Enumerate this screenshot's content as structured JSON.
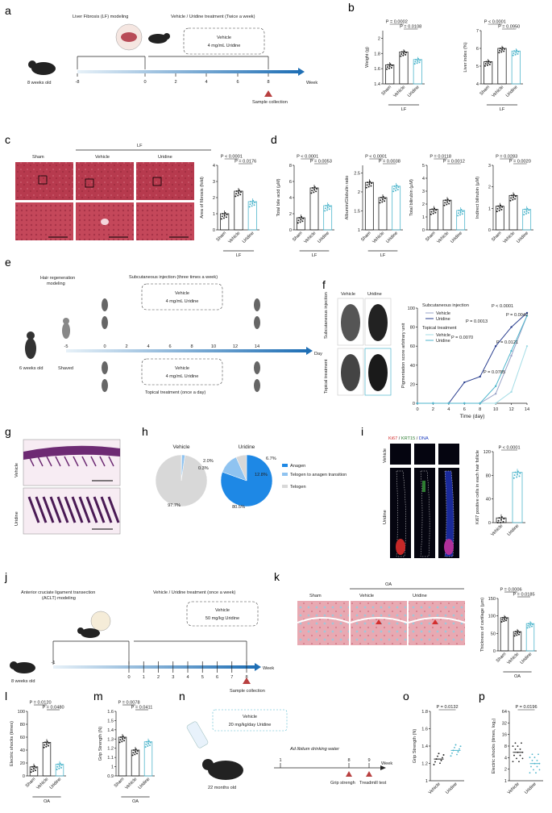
{
  "panels": {
    "a": {
      "letter": "a",
      "lf_label": "Liver Fibrosis (LF) modeling",
      "treat_label": "Vehicle / Uridine treatment (Twice a week)",
      "box_line1": "Vehicle",
      "box_line2": "4 mg/mL Uridine",
      "age": "8 weeks old",
      "week": "Week",
      "sample": "Sample collection",
      "ticks": [
        "-8",
        "0",
        "2",
        "4",
        "6",
        "8"
      ]
    },
    "b": {
      "letter": "b"
    },
    "c": {
      "letter": "c",
      "lf": "LF",
      "sham": "Sham",
      "vehicle": "Vehicle",
      "uridine": "Uridine"
    },
    "d": {
      "letter": "d"
    },
    "e": {
      "letter": "e",
      "hair_label": "Hair regeneration\nmodeling",
      "subq": "Subcutaneous injection (three times a week)",
      "box1a": "Vehicle",
      "box1b": "4 mg/mL Uridine",
      "box2a": "Vehicle",
      "box2b": "4 mg/mL Uridine",
      "topical": "Topical treatment (once a day)",
      "age": "6 weeks old",
      "shaved": "Shaved",
      "day": "Day",
      "ticks": [
        "-5",
        "0",
        "2",
        "4",
        "6",
        "8",
        "10",
        "12",
        "14"
      ]
    },
    "f": {
      "letter": "f",
      "vehicle": "Vehicle",
      "uridine": "Uridine",
      "row1": "Subcutaneous injection",
      "row2": "Topical treatment"
    },
    "g": {
      "letter": "g",
      "vehicle": "Vehicle",
      "uridine": "Uridine"
    },
    "h": {
      "letter": "h",
      "vehicle": "Vehicle",
      "uridine": "Uridine",
      "legend": [
        "Anagen",
        "Telogen to anagen transition",
        "Telogen"
      ]
    },
    "i": {
      "letter": "i",
      "stain_ki67": "Ki67",
      "stain_krt15": "KRT15",
      "stain_dna": "DNA",
      "vehicle": "Vehicle",
      "uridine": "Uridine"
    },
    "j": {
      "letter": "j",
      "acl_label": "Anterior cruciate ligament transection (ACLT) modeling",
      "treat": "Vehicle / Uridine treatment (once a week)",
      "box1": "Vehicle",
      "box2": "50 mg/kg Uridine",
      "age": "8 weeks old",
      "week": "Week",
      "sample": "Sample collection",
      "ticks": [
        "-1",
        "0",
        "1",
        "2",
        "3",
        "4",
        "5",
        "6",
        "7",
        "8"
      ]
    },
    "k": {
      "letter": "k",
      "oa": "OA",
      "sham": "Sham",
      "vehicle": "Vehicle",
      "uridine": "Uridine"
    },
    "l": {
      "letter": "l"
    },
    "m": {
      "letter": "m"
    },
    "n": {
      "letter": "n",
      "box1": "Vehicle",
      "box2": "20 mg/kg/day Uridine",
      "water": "Ad libitum drinking water",
      "age": "22 months old",
      "grip": "Grip strengh",
      "tread": "Treadmill test",
      "week": "Week",
      "ticks": [
        "1",
        "8",
        "9"
      ]
    },
    "o": {
      "letter": "o"
    },
    "p": {
      "letter": "p"
    }
  },
  "chart_data": [
    {
      "id": "b1",
      "type": "bar",
      "categories": [
        "Sham",
        "Vehicle",
        "Uridine"
      ],
      "values": [
        1.65,
        1.82,
        1.72
      ],
      "ylabel": "Weight (g)",
      "yticks": [
        1.4,
        1.6,
        1.8,
        2.0
      ],
      "ylim": [
        1.4,
        2.1
      ],
      "group": "LF",
      "pvalues": [
        "P = 0.0002",
        "P = 0.0108"
      ]
    },
    {
      "id": "b2",
      "type": "bar",
      "categories": [
        "Sham",
        "Vehicle",
        "Uridine"
      ],
      "values": [
        5.25,
        6.0,
        5.85
      ],
      "ylabel": "Liver index (%)",
      "yticks": [
        4,
        5,
        6,
        7
      ],
      "ylim": [
        4,
        7
      ],
      "group": "LF",
      "pvalues": [
        "P < 0.0001",
        "P = 0.0950"
      ]
    },
    {
      "id": "c1",
      "type": "bar",
      "categories": [
        "Sham",
        "Vehicle",
        "Uridine"
      ],
      "values": [
        1.0,
        2.4,
        1.75
      ],
      "ylabel": "Area of fibrosis (fold)",
      "yticks": [
        0,
        1,
        2,
        3,
        4
      ],
      "ylim": [
        0,
        4
      ],
      "group": "LF",
      "pvalues": [
        "P < 0.0001",
        "P = 0.0176"
      ]
    },
    {
      "id": "d1",
      "type": "bar",
      "categories": [
        "Sham",
        "Vehicle",
        "Uridine"
      ],
      "values": [
        1.5,
        5.2,
        3.0
      ],
      "ylabel": "Total bile acid (µM)",
      "yticks": [
        0,
        2,
        4,
        6,
        8
      ],
      "ylim": [
        0,
        8
      ],
      "group": "LF",
      "pvalues": [
        "P < 0.0001",
        "P = 0.0053"
      ]
    },
    {
      "id": "d2",
      "type": "bar",
      "categories": [
        "Sham",
        "Vehicle",
        "Uridine"
      ],
      "values": [
        2.25,
        1.85,
        2.15
      ],
      "ylabel": "Albumin/Globulin ratio",
      "yticks": [
        1.0,
        1.5,
        2.0,
        2.5
      ],
      "ylim": [
        1.0,
        2.7
      ],
      "group": "LF",
      "pvalues": [
        "P < 0.0001",
        "P = 0.0038"
      ]
    },
    {
      "id": "d3",
      "type": "bar",
      "categories": [
        "Sham",
        "Vehicle",
        "Uridine"
      ],
      "values": [
        1.6,
        2.3,
        1.5
      ],
      "ylabel": "Total bilirubin (µM)",
      "yticks": [
        0,
        1,
        2,
        3,
        4,
        5
      ],
      "ylim": [
        0,
        5
      ],
      "pvalues": [
        "P = 0.0118",
        "P = 0.0012"
      ]
    },
    {
      "id": "d4",
      "type": "bar",
      "categories": [
        "Sham",
        "Vehicle",
        "Uridine"
      ],
      "values": [
        1.1,
        1.6,
        0.95
      ],
      "ylabel": "Indirect bilirubin (µM)",
      "yticks": [
        0,
        1,
        2,
        3
      ],
      "ylim": [
        0,
        3
      ],
      "pvalues": [
        "P = 0.0283",
        "P = 0.0020"
      ]
    },
    {
      "id": "f1",
      "type": "line",
      "xlabel": "Time (day)",
      "ylabel": "Pigmentation score arbitrary unit",
      "x": [
        0,
        2,
        4,
        6,
        8,
        10,
        12,
        14
      ],
      "xlim": [
        0,
        14
      ],
      "ylim": [
        0,
        100
      ],
      "yticks": [
        0,
        20,
        40,
        60,
        80,
        100
      ],
      "legend_title1": "Subcutaneous injection",
      "legend_title2": "Topical treatment",
      "series": [
        {
          "name": "Vehicle",
          "group": "sub",
          "color": "#9aa4c8",
          "values": [
            0,
            0,
            0,
            0,
            0,
            10,
            50,
            92
          ]
        },
        {
          "name": "Uridine",
          "group": "sub",
          "color": "#2a3f8f",
          "values": [
            0,
            0,
            0,
            22,
            28,
            60,
            80,
            95
          ]
        },
        {
          "name": "Vehicle",
          "group": "top",
          "color": "#a5dde6",
          "values": [
            0,
            0,
            0,
            0,
            0,
            0,
            12,
            60
          ]
        },
        {
          "name": "Uridine",
          "group": "top",
          "color": "#4fb6cc",
          "values": [
            0,
            0,
            0,
            0,
            0,
            18,
            55,
            92
          ]
        }
      ],
      "pvalues": [
        "P < 0.0001",
        "P = 0.0013",
        "P = 0.0070",
        "P = 0.0042",
        "P = 0.0121",
        "P = 0.0785"
      ]
    },
    {
      "id": "h1",
      "type": "pie",
      "title": "Vehicle",
      "values": [
        0.3,
        2.0,
        97.7
      ],
      "labels": [
        "0.3%",
        "2.0%",
        "97.7%"
      ]
    },
    {
      "id": "h2",
      "type": "pie",
      "title": "Uridine",
      "values": [
        80.5,
        12.8,
        6.7
      ],
      "labels": [
        "80.5%",
        "12.8%",
        "6.7%"
      ]
    },
    {
      "id": "i1",
      "type": "bar",
      "categories": [
        "Vehicle",
        "Uridine"
      ],
      "values": [
        8,
        85
      ],
      "ylabel": "Ki67 positive cells in each hair follicle",
      "yticks": [
        0,
        40,
        80,
        120
      ],
      "ylim": [
        0,
        120
      ],
      "pvalues": [
        "P < 0.0001"
      ]
    },
    {
      "id": "k1",
      "type": "bar",
      "categories": [
        "Sham",
        "Vehicle",
        "Uridine"
      ],
      "values": [
        95,
        55,
        78
      ],
      "ylabel": "Thickness of cartilage (µm)",
      "yticks": [
        0,
        50,
        100,
        150
      ],
      "ylim": [
        0,
        150
      ],
      "group": "OA",
      "pvalues": [
        "P = 0.0006",
        "P = 0.0185"
      ]
    },
    {
      "id": "l1",
      "type": "bar",
      "categories": [
        "Sham",
        "Vehicle",
        "Uridine"
      ],
      "values": [
        14,
        52,
        18
      ],
      "ylabel": "Electric shocks (times)",
      "yticks": [
        0,
        20,
        40,
        60,
        80,
        100
      ],
      "ylim": [
        0,
        100
      ],
      "group": "OA",
      "pvalues": [
        "P = 0.0120",
        "P = 0.0480"
      ]
    },
    {
      "id": "m1",
      "type": "bar",
      "categories": [
        "Sham",
        "Vehicle",
        "Uridine"
      ],
      "values": [
        1.32,
        1.18,
        1.27
      ],
      "ylabel": "Grip Strength (N)",
      "yticks": [
        0.9,
        1.0,
        1.1,
        1.2,
        1.3,
        1.4,
        1.5,
        1.6
      ],
      "ylim": [
        0.9,
        1.6
      ],
      "group": "OA",
      "pvalues": [
        "P = 0.0078",
        "P = 0.0411"
      ]
    },
    {
      "id": "o1",
      "type": "scatter",
      "categories": [
        "Vehicle",
        "Uridine"
      ],
      "values": [
        1.25,
        1.35
      ],
      "ylabel": "Grip Strength (N)",
      "yticks": [
        1.0,
        1.2,
        1.4,
        1.6,
        1.8
      ],
      "ylim": [
        1.0,
        1.8
      ],
      "pvalues": [
        "P = 0.0132"
      ]
    },
    {
      "id": "p1",
      "type": "scatter",
      "categories": [
        "Vehicle",
        "Uridine"
      ],
      "values": [
        5.5,
        2.8
      ],
      "ylabel": "Electric shocks (times, log₂)",
      "yticks": [
        1,
        2,
        4,
        8,
        16,
        32,
        64
      ],
      "ylim": [
        1,
        64
      ],
      "log": true,
      "pvalues": [
        "P = 0.0196"
      ]
    }
  ]
}
